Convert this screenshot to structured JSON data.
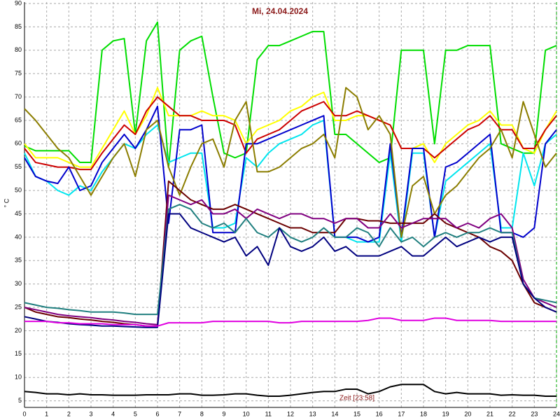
{
  "chart_data": {
    "type": "line",
    "title": "Mi, 24.04.2024",
    "y_label": "° C",
    "annotation": "Zeit [23:58]",
    "grid": true,
    "xlim": [
      0,
      24
    ],
    "ylim": [
      3.6,
      90.3
    ],
    "xticks": [
      0,
      1,
      2,
      3,
      4,
      5,
      6,
      7,
      8,
      9,
      10,
      11,
      12,
      13,
      14,
      15,
      16,
      17,
      18,
      19,
      20,
      21,
      22,
      23,
      24
    ],
    "yticks": [
      5,
      10,
      15,
      20,
      25,
      30,
      35,
      40,
      45,
      50,
      55,
      60,
      65,
      70,
      75,
      80,
      85,
      90
    ],
    "x": [
      0,
      0.5,
      1,
      1.5,
      2,
      2.5,
      3,
      3.5,
      4,
      4.5,
      5,
      5.5,
      6,
      6.5,
      7,
      7.5,
      8,
      8.5,
      9,
      9.5,
      10,
      10.5,
      11,
      11.5,
      12,
      12.5,
      13,
      13.5,
      14,
      14.5,
      15,
      15.5,
      16,
      16.5,
      17,
      17.5,
      18,
      18.5,
      19,
      19.5,
      20,
      20.5,
      21,
      21.5,
      22,
      22.5,
      23,
      23.5,
      24
    ],
    "series": [
      {
        "color": "#00dd00",
        "values": [
          59.5,
          58.5,
          58.5,
          58.5,
          58.5,
          56,
          56,
          80,
          82,
          82.5,
          62,
          82,
          86,
          55,
          80,
          82,
          83,
          70,
          58,
          57,
          58,
          78,
          81,
          81,
          82,
          83,
          84,
          84,
          62,
          62,
          60,
          58,
          56,
          57,
          80,
          80,
          80,
          60,
          80,
          80,
          81,
          81,
          81,
          60,
          59,
          58,
          58,
          80,
          81
        ]
      },
      {
        "color": "#ffff00",
        "values": [
          60,
          57,
          57,
          57,
          56,
          55,
          55,
          59,
          63,
          67,
          62,
          66,
          72,
          66,
          66,
          66,
          67,
          66,
          66,
          65,
          60,
          63,
          64,
          65,
          67,
          68,
          70,
          71,
          65,
          65,
          66,
          66,
          65,
          64,
          59,
          59,
          60,
          56,
          60,
          62,
          64,
          65,
          67,
          64,
          64,
          59,
          58,
          63,
          67
        ]
      },
      {
        "color": "#cc0000",
        "values": [
          59,
          56,
          55.5,
          55,
          55,
          54.5,
          54.5,
          58,
          61,
          64,
          62,
          67,
          70,
          68,
          66,
          66,
          65,
          65,
          65,
          64,
          58,
          61,
          62,
          63,
          65,
          67,
          68,
          69,
          66,
          66,
          67,
          66,
          65,
          64,
          59,
          59,
          59,
          57,
          59,
          61,
          63,
          64,
          66,
          63,
          63,
          59,
          59,
          63,
          66
        ]
      },
      {
        "color": "#00e5ee",
        "values": [
          58,
          53,
          52,
          50,
          49,
          51,
          50,
          54,
          57,
          60,
          59,
          62,
          64,
          56,
          57,
          58,
          58,
          42,
          42,
          43,
          57,
          55,
          58,
          60,
          61,
          62,
          64,
          65,
          40,
          40,
          39,
          39,
          39,
          58,
          39,
          58,
          58,
          40,
          52,
          54,
          56,
          58,
          60,
          42,
          42,
          58,
          51,
          60,
          62
        ]
      },
      {
        "color": "#0000cc",
        "values": [
          57,
          53,
          52,
          51.5,
          55,
          50,
          51,
          56,
          59,
          62,
          59,
          63,
          68,
          43,
          63,
          63,
          64,
          41,
          41,
          41,
          60,
          60,
          61,
          62,
          63,
          64,
          65,
          66,
          40,
          40,
          40,
          39,
          40,
          60,
          40,
          59,
          59,
          40,
          55,
          56,
          58,
          60,
          62,
          41,
          41,
          40,
          42,
          60,
          63
        ]
      },
      {
        "color": "#8b7d00",
        "values": [
          67.5,
          65,
          62,
          59,
          57,
          53,
          49,
          53,
          57,
          60,
          53,
          63,
          65,
          55,
          49,
          55,
          60,
          61,
          55,
          65,
          69,
          54,
          54,
          55,
          57,
          59,
          60,
          62,
          57,
          72,
          70,
          63,
          66,
          62,
          40,
          51,
          53,
          45,
          49,
          51,
          54,
          57,
          59,
          63,
          57,
          69,
          62,
          55,
          58
        ]
      },
      {
        "color": "#6b0000",
        "values": [
          25,
          24,
          23.5,
          23,
          22.8,
          22.5,
          22.3,
          22,
          21.8,
          21.5,
          21.3,
          21,
          21,
          52,
          50,
          48,
          47,
          46,
          46,
          47,
          46,
          45,
          44,
          43,
          42,
          42,
          41,
          41,
          41,
          44,
          44,
          43.5,
          43.5,
          43,
          43,
          43,
          43,
          45,
          43,
          42,
          41,
          40,
          38,
          37,
          35,
          30,
          26,
          25,
          24
        ]
      },
      {
        "color": "#800080",
        "values": [
          25,
          24.5,
          24,
          23.5,
          23.2,
          23,
          22.8,
          22.5,
          22.3,
          22,
          21.8,
          21.5,
          21.3,
          49,
          48,
          47,
          48,
          45,
          45,
          46,
          44,
          46,
          45,
          44,
          45,
          45,
          44,
          44,
          43,
          44,
          44,
          42,
          42,
          45,
          42,
          43,
          44,
          44,
          44,
          42,
          43,
          42,
          44,
          45,
          42,
          31,
          27,
          26,
          25
        ]
      },
      {
        "color": "#207f7f",
        "values": [
          26,
          25.5,
          25,
          24.8,
          24.5,
          24.3,
          24,
          24,
          24,
          23.8,
          23.5,
          23.5,
          23.5,
          46,
          47,
          46,
          43,
          42,
          43,
          41,
          44,
          41,
          40,
          42,
          40,
          39,
          40,
          42,
          40,
          40,
          42,
          41,
          38,
          42,
          39,
          40,
          38,
          40,
          41,
          40,
          41,
          41,
          42,
          41,
          41,
          30,
          27,
          26.5,
          26
        ]
      },
      {
        "color": "#00007f",
        "values": [
          23,
          22.5,
          22,
          21.8,
          21.5,
          21.3,
          21.2,
          21,
          21,
          20.9,
          20.8,
          20.7,
          20.7,
          45,
          45,
          42,
          41,
          40,
          39,
          40,
          36,
          38,
          34,
          42,
          38,
          37,
          38,
          40,
          37,
          38,
          36,
          36,
          36,
          37,
          38,
          36,
          36,
          38,
          40,
          38,
          39,
          40,
          39,
          40,
          40,
          30,
          27,
          25,
          24
        ]
      },
      {
        "color": "#e000e0",
        "values": [
          22,
          22,
          22,
          21.7,
          21.7,
          21.5,
          21.5,
          21.5,
          21.3,
          21.3,
          21.3,
          21,
          21,
          21.7,
          21.7,
          21.7,
          21.7,
          22,
          22,
          22,
          22,
          22,
          22,
          21.7,
          21.7,
          22,
          22,
          22,
          22,
          22,
          22,
          22.2,
          22.7,
          22.7,
          22.2,
          22.2,
          22.2,
          22.7,
          22.7,
          22.2,
          22.2,
          22.2,
          22.2,
          22,
          22,
          22,
          22,
          22,
          22
        ]
      },
      {
        "color": "#000000",
        "values": [
          7,
          6.8,
          6.5,
          6.5,
          6.3,
          6.5,
          6.3,
          6.3,
          6.2,
          6.2,
          6.2,
          6.3,
          6.3,
          6.3,
          6.5,
          6.5,
          6.2,
          6.2,
          6.3,
          6.5,
          6.5,
          6.2,
          6,
          6,
          6.2,
          6.5,
          6.8,
          7,
          7,
          7.5,
          7.5,
          6.5,
          7,
          8,
          8.5,
          8.5,
          8.5,
          7,
          6.5,
          6.8,
          6.5,
          6.5,
          6.5,
          6.2,
          6.3,
          6.2,
          6.2,
          6,
          6
        ]
      }
    ]
  }
}
